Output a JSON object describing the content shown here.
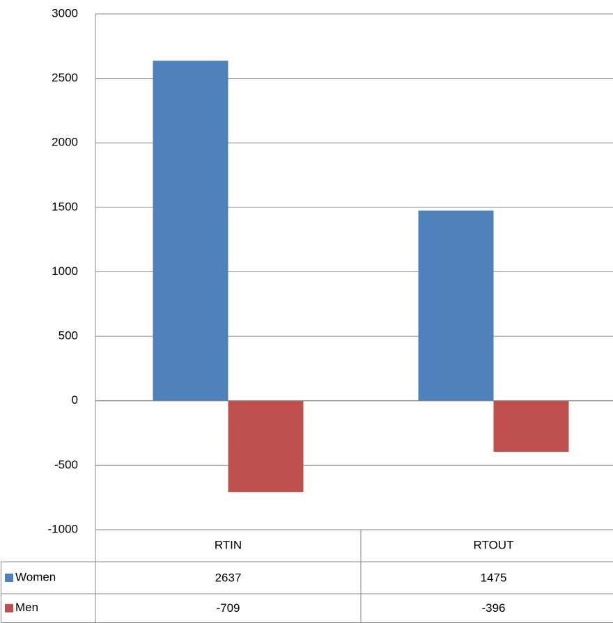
{
  "chart_data": {
    "type": "bar",
    "categories": [
      "RTIN",
      "RTOUT"
    ],
    "series": [
      {
        "name": "Women",
        "color": "#4f81bd",
        "values": [
          2637,
          1475
        ]
      },
      {
        "name": "Men",
        "color": "#c0504d",
        "values": [
          -709,
          -396
        ]
      }
    ],
    "ylim": [
      -1000,
      3000
    ],
    "yticks": [
      -1000,
      -500,
      0,
      500,
      1000,
      1500,
      2000,
      2500,
      3000
    ],
    "grid": true,
    "data_table": true
  }
}
